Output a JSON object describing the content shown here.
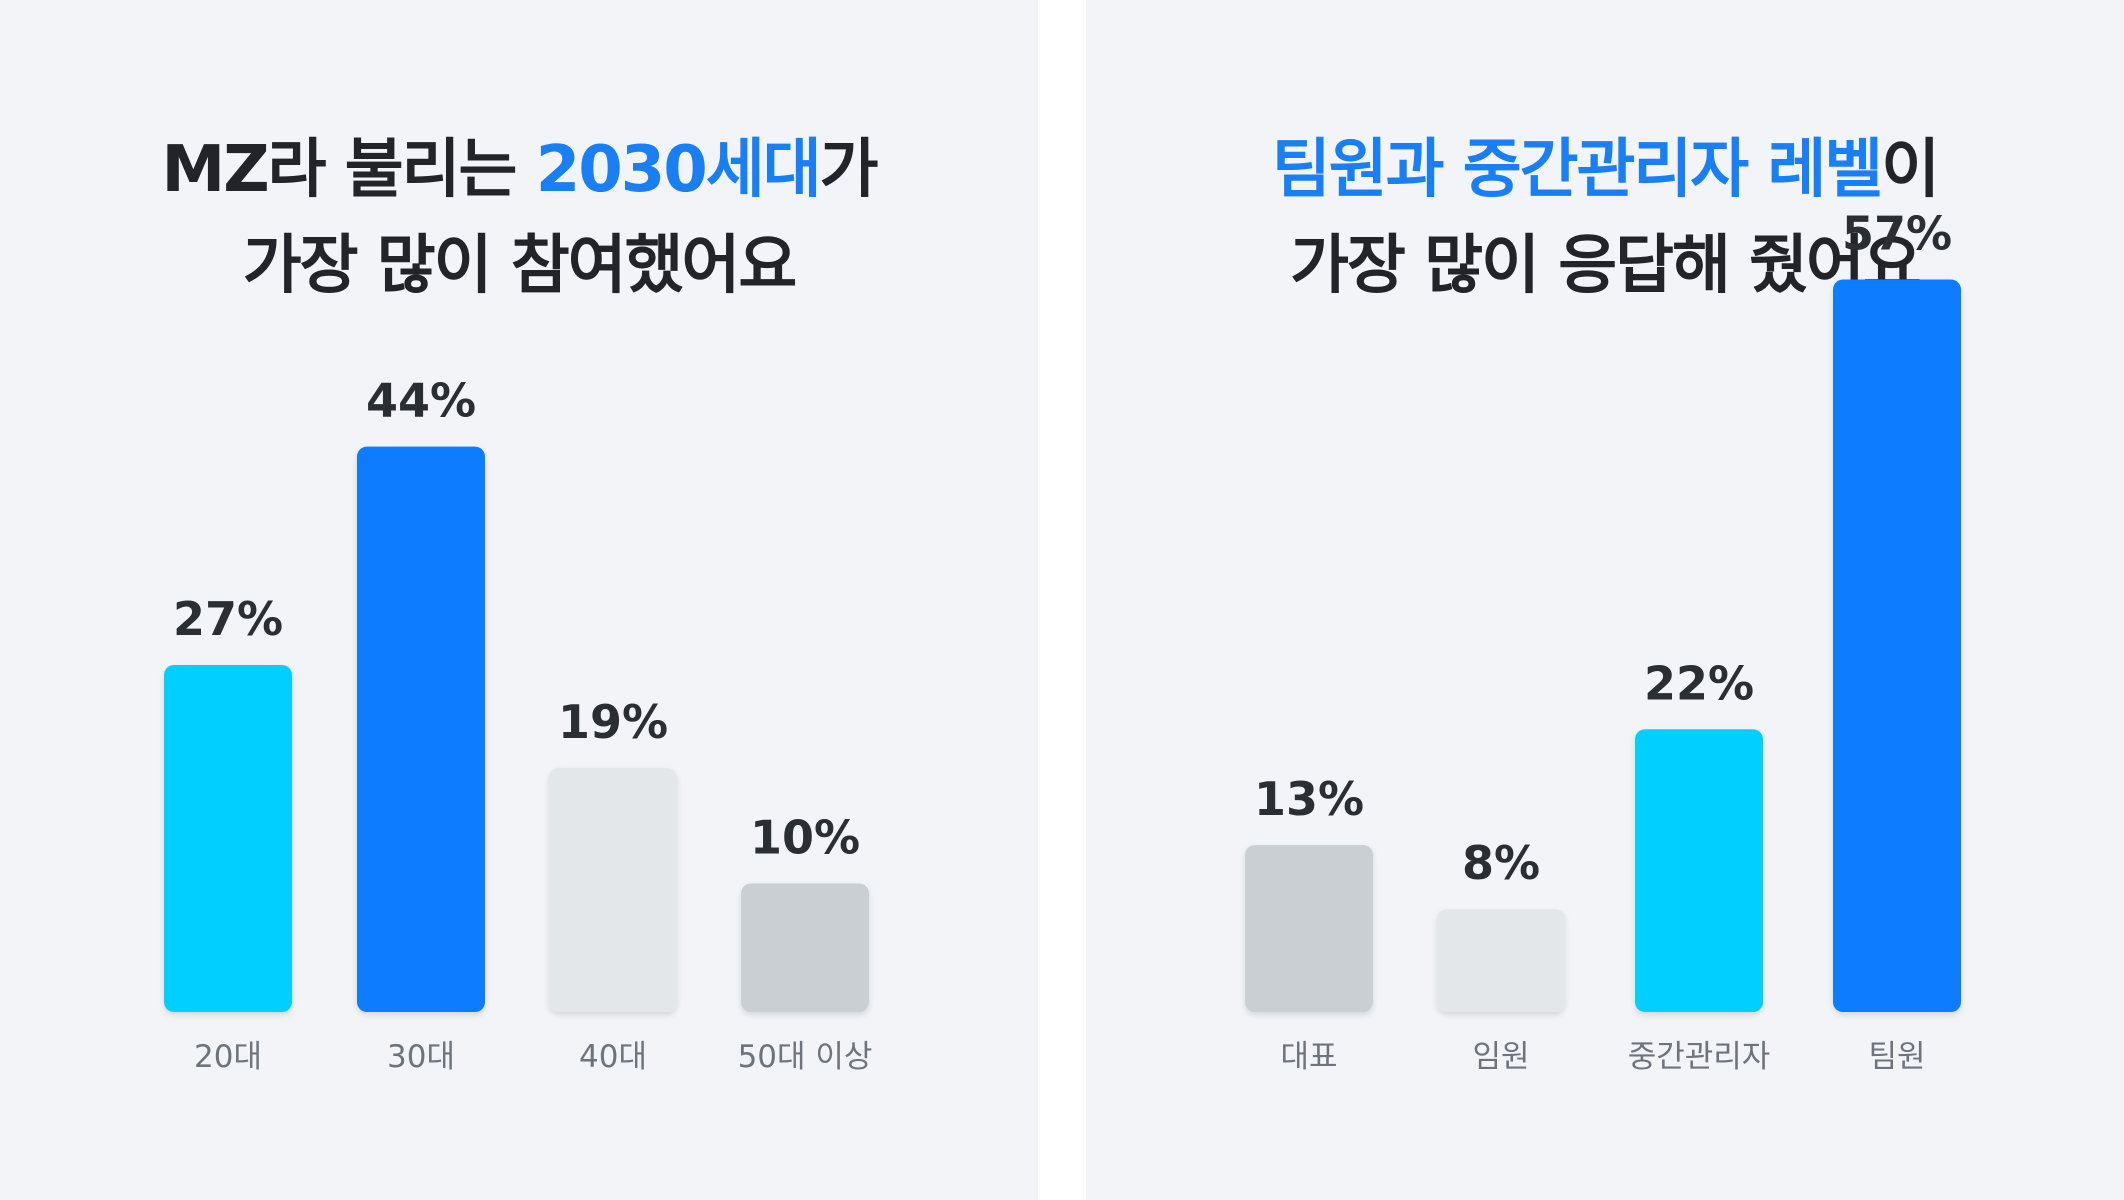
{
  "left_panel": {
    "title_line1_a": "MZ라 불리는 ",
    "title_line1_hl": "2030세대",
    "title_line1_b": "가",
    "title_line2": "가장 많이 참여했어요"
  },
  "right_panel": {
    "title_line1_hl": "팀원과 중간관리자 레벨",
    "title_line1_b": "이",
    "title_line2": "가장 많이 응답해 줬어요"
  },
  "chart_data": [
    {
      "type": "bar",
      "categories": [
        "20대",
        "30대",
        "40대",
        "50대 이상"
      ],
      "values": [
        27,
        44,
        19,
        10
      ],
      "value_labels": [
        "27%",
        "44%",
        "19%",
        "10%"
      ],
      "colors": [
        "#00cfff",
        "#0a7cff",
        "#e3e7ea",
        "#c9cfd3"
      ],
      "unit": "%",
      "ylim": [
        0,
        60
      ]
    },
    {
      "type": "bar",
      "categories": [
        "대표",
        "임원",
        "중간관리자",
        "팀원"
      ],
      "values": [
        13,
        8,
        22,
        57
      ],
      "value_labels": [
        "13%",
        "8%",
        "22%",
        "57%"
      ],
      "colors": [
        "#c9cfd3",
        "#e3e7ea",
        "#00cfff",
        "#0a7cff"
      ],
      "unit": "%",
      "ylim": [
        0,
        60
      ]
    }
  ]
}
